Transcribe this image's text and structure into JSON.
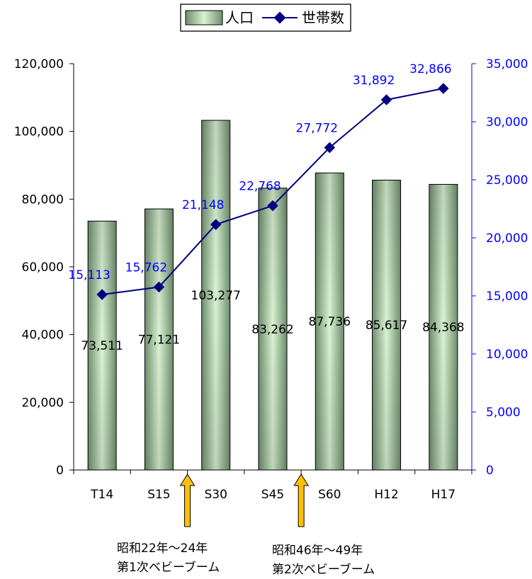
{
  "chart_data": {
    "type": "bar",
    "categories": [
      "T14",
      "S15",
      "S30",
      "S45",
      "S60",
      "H12",
      "H17"
    ],
    "series": [
      {
        "name": "人口",
        "type": "bar",
        "axis": "left",
        "values": [
          73511,
          77121,
          103277,
          83262,
          87736,
          85617,
          84368
        ],
        "labels": [
          "73,511",
          "77,121",
          "103,277",
          "83,262",
          "87,736",
          "85,617",
          "84,368"
        ],
        "color": "#8aa888"
      },
      {
        "name": "世帯数",
        "type": "line",
        "axis": "right",
        "values": [
          15113,
          15762,
          21148,
          22768,
          27772,
          31892,
          32866
        ],
        "labels": [
          "15,113",
          "15,762",
          "21,148",
          "22,768",
          "27,772",
          "31,892",
          "32,866"
        ],
        "color": "#000080"
      }
    ],
    "y_left": {
      "range": [
        0,
        120000
      ],
      "ticks": [
        0,
        20000,
        40000,
        60000,
        80000,
        100000,
        120000
      ],
      "tick_labels": [
        "0",
        "20,000",
        "40,000",
        "60,000",
        "80,000",
        "100,000",
        "120,000"
      ]
    },
    "y_right": {
      "range": [
        0,
        35000
      ],
      "ticks": [
        0,
        5000,
        10000,
        15000,
        20000,
        25000,
        30000,
        35000
      ],
      "tick_labels": [
        "0",
        "5,000",
        "10,000",
        "15,000",
        "20,000",
        "25,000",
        "30,000",
        "35,000"
      ],
      "color": "#0000ff"
    },
    "legend": {
      "placement": "top-center",
      "items": [
        "人口",
        "世帯数"
      ]
    },
    "grid": false,
    "annotations": [
      {
        "after_category": "S15",
        "lines": [
          "昭和22年～24年",
          "第1次ベビーブーム"
        ],
        "arrow_color": "#ffc000"
      },
      {
        "after_category": "S45",
        "lines": [
          "昭和46年～49年",
          "第2次ベビーブーム"
        ],
        "arrow_color": "#ffc000"
      }
    ]
  }
}
